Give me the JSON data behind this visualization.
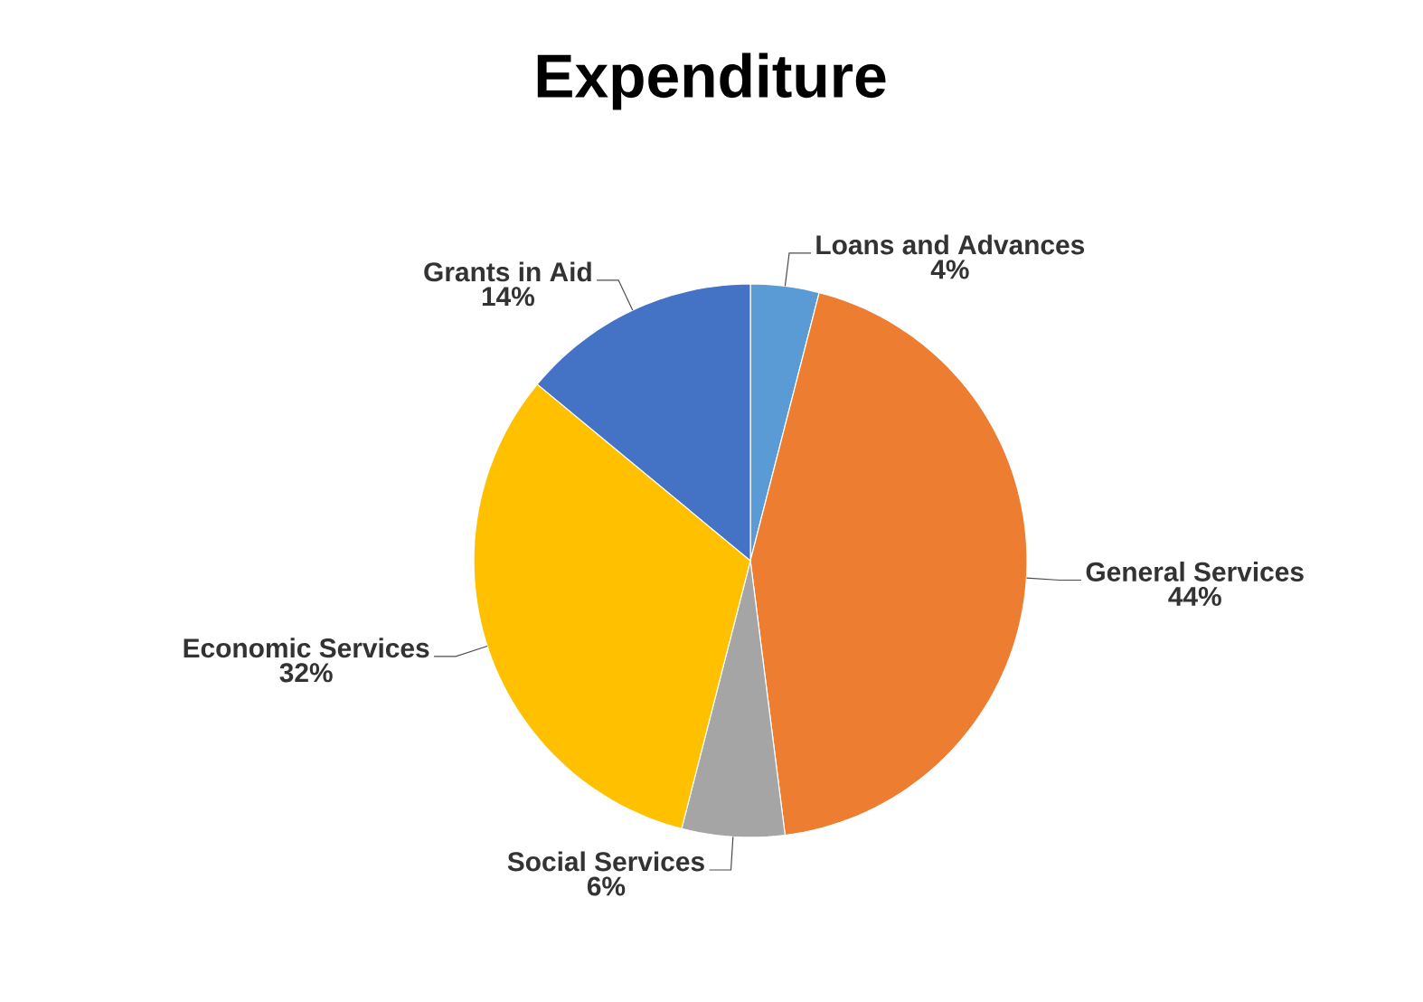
{
  "chart_data": {
    "type": "pie",
    "title": "Expenditure",
    "categories": [
      "Loans and Advances",
      "General Services",
      "Social Services",
      "Economic Services",
      "Grants in Aid"
    ],
    "values": [
      4,
      44,
      6,
      32,
      14
    ],
    "value_labels": [
      "4%",
      "44%",
      "6%",
      "32%",
      "14%"
    ],
    "colors": [
      "#5b9bd5",
      "#ed7d31",
      "#a5a5a5",
      "#ffc000",
      "#4472c4"
    ]
  }
}
